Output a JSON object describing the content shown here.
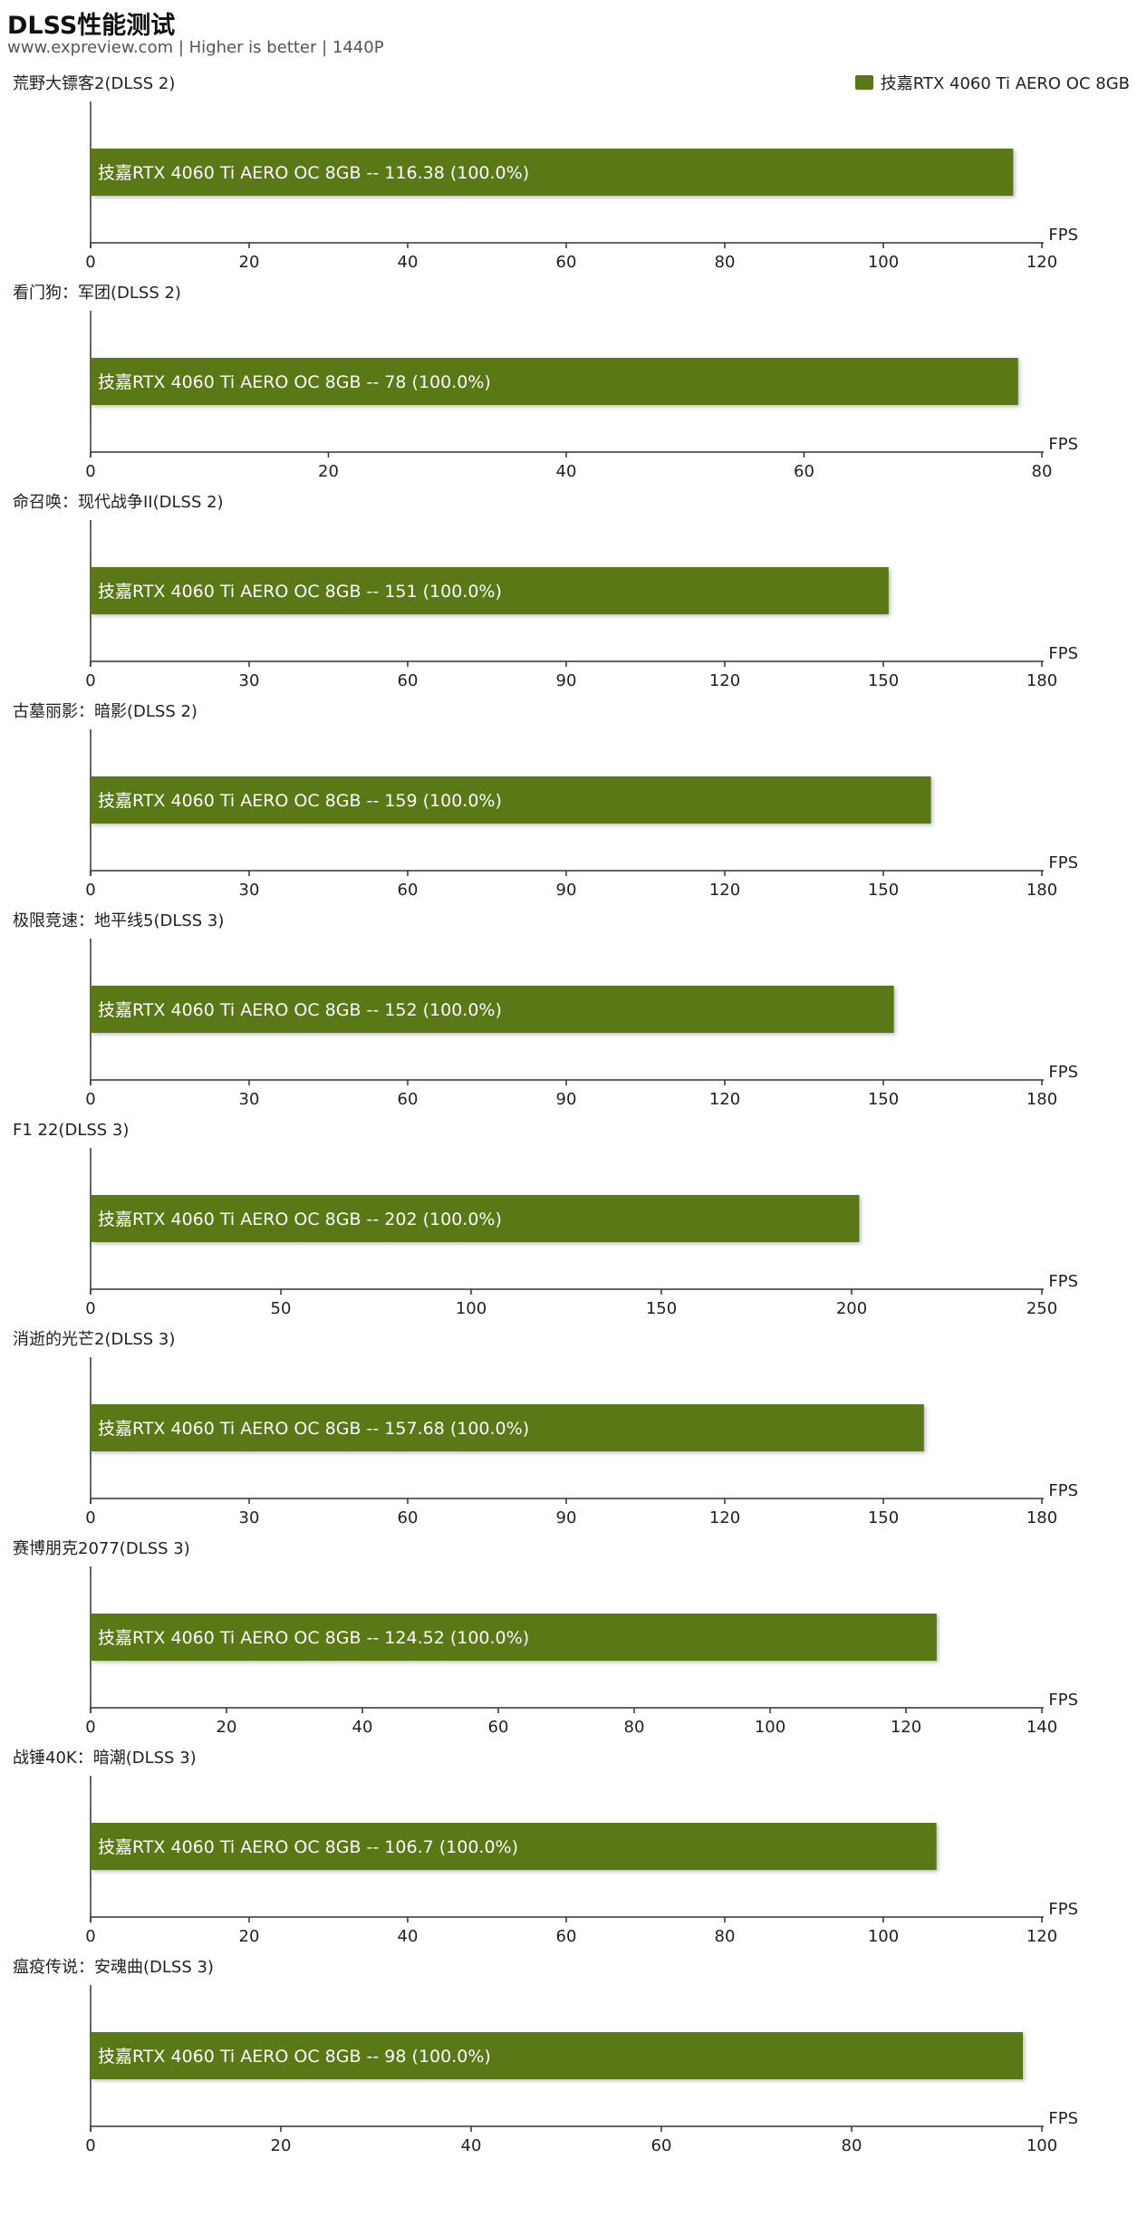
{
  "header": {
    "title": "DLSS性能测试",
    "subtitle": "www.expreview.com | Higher is better | 1440P"
  },
  "legend": {
    "label": "技嘉RTX 4060 Ti AERO OC 8GB",
    "color": "#5a7816"
  },
  "chart_data": [
    {
      "type": "bar",
      "title": "荒野大镖客2(DLSS 2)",
      "categories": [
        "技嘉RTX 4060 Ti AERO OC 8GB"
      ],
      "values": [
        116.38
      ],
      "data_label": "技嘉RTX 4060 Ti AERO OC 8GB  --  116.38 (100.0%)",
      "xlabel": "FPS",
      "xlim": [
        0,
        120
      ],
      "ticks": [
        "0",
        "20",
        "40",
        "60",
        "80",
        "100",
        "120"
      ]
    },
    {
      "type": "bar",
      "title": "看门狗：军团(DLSS 2)",
      "categories": [
        "技嘉RTX 4060 Ti AERO OC 8GB"
      ],
      "values": [
        78
      ],
      "data_label": "技嘉RTX 4060 Ti AERO OC 8GB  --  78 (100.0%)",
      "xlabel": "FPS",
      "xlim": [
        0,
        80
      ],
      "ticks": [
        "0",
        "20",
        "40",
        "60",
        "80"
      ]
    },
    {
      "type": "bar",
      "title": "命召唤：现代战争II(DLSS 2)",
      "categories": [
        "技嘉RTX 4060 Ti AERO OC 8GB"
      ],
      "values": [
        151
      ],
      "data_label": "技嘉RTX 4060 Ti AERO OC 8GB  --  151 (100.0%)",
      "xlabel": "FPS",
      "xlim": [
        0,
        180
      ],
      "ticks": [
        "0",
        "30",
        "60",
        "90",
        "120",
        "150",
        "180"
      ]
    },
    {
      "type": "bar",
      "title": "古墓丽影：暗影(DLSS 2)",
      "categories": [
        "技嘉RTX 4060 Ti AERO OC 8GB"
      ],
      "values": [
        159
      ],
      "data_label": "技嘉RTX 4060 Ti AERO OC 8GB  --  159 (100.0%)",
      "xlabel": "FPS",
      "xlim": [
        0,
        180
      ],
      "ticks": [
        "0",
        "30",
        "60",
        "90",
        "120",
        "150",
        "180"
      ]
    },
    {
      "type": "bar",
      "title": "极限竞速：地平线5(DLSS 3)",
      "categories": [
        "技嘉RTX 4060 Ti AERO OC 8GB"
      ],
      "values": [
        152
      ],
      "data_label": "技嘉RTX 4060 Ti AERO OC 8GB  --  152 (100.0%)",
      "xlabel": "FPS",
      "xlim": [
        0,
        180
      ],
      "ticks": [
        "0",
        "30",
        "60",
        "90",
        "120",
        "150",
        "180"
      ]
    },
    {
      "type": "bar",
      "title": "F1 22(DLSS 3)",
      "categories": [
        "技嘉RTX 4060 Ti AERO OC 8GB"
      ],
      "values": [
        202
      ],
      "data_label": "技嘉RTX 4060 Ti AERO OC 8GB  --  202 (100.0%)",
      "xlabel": "FPS",
      "xlim": [
        0,
        250
      ],
      "ticks": [
        "0",
        "50",
        "100",
        "150",
        "200",
        "250"
      ]
    },
    {
      "type": "bar",
      "title": "消逝的光芒2(DLSS 3)",
      "categories": [
        "技嘉RTX 4060 Ti AERO OC 8GB"
      ],
      "values": [
        157.68
      ],
      "data_label": "技嘉RTX 4060 Ti AERO OC 8GB  --  157.68 (100.0%)",
      "xlabel": "FPS",
      "xlim": [
        0,
        180
      ],
      "ticks": [
        "0",
        "30",
        "60",
        "90",
        "120",
        "150",
        "180"
      ]
    },
    {
      "type": "bar",
      "title": "赛博朋克2077(DLSS 3)",
      "categories": [
        "技嘉RTX 4060 Ti AERO OC 8GB"
      ],
      "values": [
        124.52
      ],
      "data_label": "技嘉RTX 4060 Ti AERO OC 8GB  --  124.52 (100.0%)",
      "xlabel": "FPS",
      "xlim": [
        0,
        140
      ],
      "ticks": [
        "0",
        "20",
        "40",
        "60",
        "80",
        "100",
        "120",
        "140"
      ]
    },
    {
      "type": "bar",
      "title": "战锤40K：暗潮(DLSS 3)",
      "categories": [
        "技嘉RTX 4060 Ti AERO OC 8GB"
      ],
      "values": [
        106.7
      ],
      "data_label": "技嘉RTX 4060 Ti AERO OC 8GB  --  106.7 (100.0%)",
      "xlabel": "FPS",
      "xlim": [
        0,
        120
      ],
      "ticks": [
        "0",
        "20",
        "40",
        "60",
        "80",
        "100",
        "120"
      ]
    },
    {
      "type": "bar",
      "title": "瘟疫传说：安魂曲(DLSS 3)",
      "categories": [
        "技嘉RTX 4060 Ti AERO OC 8GB"
      ],
      "values": [
        98
      ],
      "data_label": "技嘉RTX 4060 Ti AERO OC 8GB  --  98 (100.0%)",
      "xlabel": "FPS",
      "xlim": [
        0,
        100
      ],
      "ticks": [
        "0",
        "20",
        "40",
        "60",
        "80",
        "100"
      ]
    }
  ]
}
